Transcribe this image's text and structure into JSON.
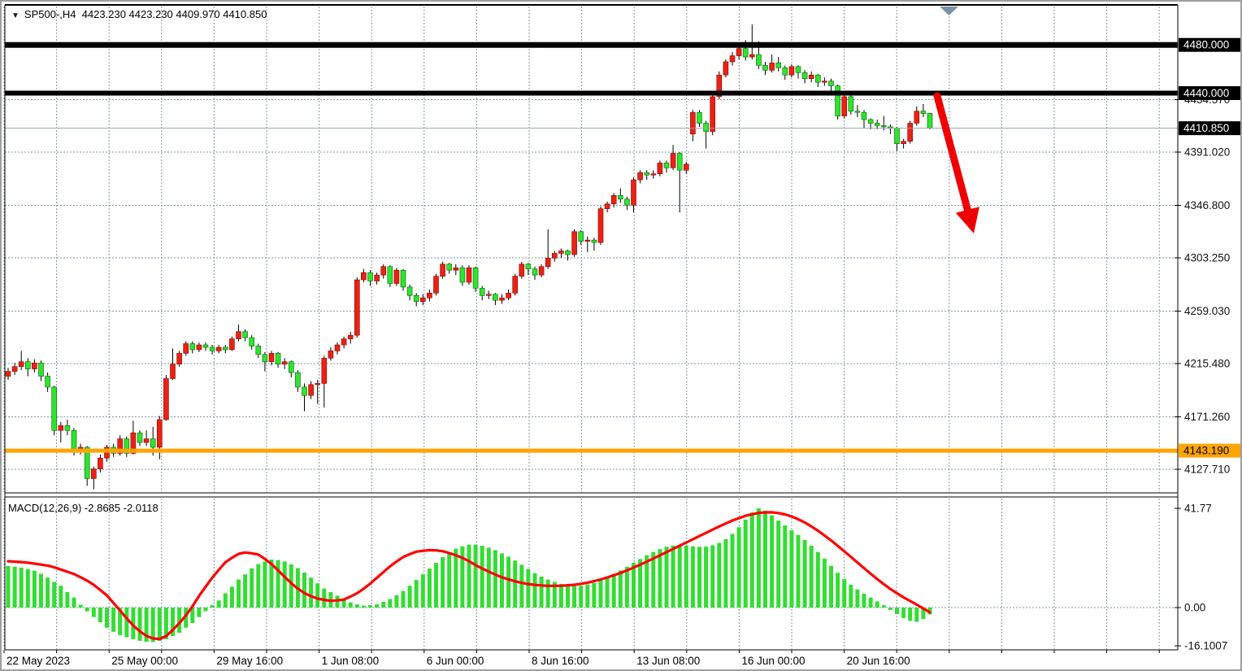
{
  "header": {
    "title": "SP500-,H4  4423.230 4423.230 4409.970 4410.850",
    "dropdown_marker": "▼"
  },
  "macd_panel": {
    "label": "MACD(12,26,9) -2.8685 -2.0118"
  },
  "price_axis": {
    "labels": [
      {
        "t": "4434.570",
        "p": 4434.57
      },
      {
        "t": "4391.020",
        "p": 4391.02
      },
      {
        "t": "4346.800",
        "p": 4346.8
      },
      {
        "t": "4303.250",
        "p": 4303.25
      },
      {
        "t": "4259.030",
        "p": 4259.03
      },
      {
        "t": "4215.480",
        "p": 4215.48
      },
      {
        "t": "4171.260",
        "p": 4171.26
      },
      {
        "t": "4127.710",
        "p": 4127.71
      }
    ],
    "badges": [
      {
        "t": "4480.000",
        "p": 4480.0,
        "bg": "#000000",
        "fg": "#ffffff",
        "line_w": 7,
        "line_color": "#000000",
        "name": "resistance-upper"
      },
      {
        "t": "4440.000",
        "p": 4440.0,
        "bg": "#000000",
        "fg": "#ffffff",
        "line_w": 6,
        "line_color": "#000000",
        "name": "resistance-lower"
      },
      {
        "t": "4410.850",
        "p": 4410.85,
        "bg": "#000000",
        "fg": "#ffffff",
        "line_w": 1,
        "line_color": "#90a4ae",
        "name": "current-price"
      },
      {
        "t": "4143.190",
        "p": 4143.19,
        "bg": "#ffa500",
        "fg": "#000000",
        "line_w": 5,
        "line_color": "#ffa500",
        "name": "support-orange"
      }
    ]
  },
  "macd_axis": [
    {
      "t": "41.77",
      "v": 41.77
    },
    {
      "t": "0.00",
      "v": 0.0
    },
    {
      "t": "-16.1007",
      "v": -16.1007
    }
  ],
  "time_axis": [
    {
      "t": "22 May 2023",
      "k": 0
    },
    {
      "t": "25 May 00:00",
      "k": 2
    },
    {
      "t": "29 May 16:00",
      "k": 4
    },
    {
      "t": "1 Jun 08:00",
      "k": 6
    },
    {
      "t": "6 Jun 00:00",
      "k": 8
    },
    {
      "t": "8 Jun 16:00",
      "k": 10
    },
    {
      "t": "13 Jun 08:00",
      "k": 12
    },
    {
      "t": "16 Jun 00:00",
      "k": 14
    },
    {
      "t": "20 Jun 16:00",
      "k": 16
    }
  ],
  "colors": {
    "bull_candle": "#ea2213",
    "bull_border": "#8b0000",
    "bear_candle": "#2fe42f",
    "bear_border": "#006400",
    "wick": "#000000",
    "grid": "#8296a8",
    "macd_hist": "#33dd33",
    "macd_signal": "#ff0000",
    "level_black": "#000000",
    "level_orange": "#ffa500",
    "current_line": "#90a4ae",
    "arrow": "#ee0000",
    "scroll_marker": "#7d93a3"
  },
  "chart_data": {
    "type": "candlestick+macd",
    "symbol": "SP500-",
    "timeframe": "H4",
    "ohlc_display": {
      "open": 4423.23,
      "high": 4423.23,
      "low": 4409.97,
      "close": 4410.85
    },
    "levels": {
      "resistance_upper": 4480.0,
      "resistance_lower": 4440.0,
      "support": 4143.19,
      "current": 4410.85
    },
    "macd_values": {
      "macd": -2.8685,
      "signal": -2.0118
    },
    "ylim_price": [
      4110,
      4500
    ],
    "ylim_macd": [
      -16.1007,
      41.77
    ],
    "candles": [
      [
        4205,
        4212,
        4202,
        4209
      ],
      [
        4209,
        4216,
        4206,
        4213
      ],
      [
        4213,
        4226,
        4210,
        4217
      ],
      [
        4217,
        4220,
        4205,
        4211
      ],
      [
        4211,
        4219,
        4208,
        4216
      ],
      [
        4216,
        4218,
        4201,
        4205
      ],
      [
        4205,
        4208,
        4192,
        4196
      ],
      [
        4196,
        4197,
        4156,
        4160
      ],
      [
        4160,
        4167,
        4150,
        4164
      ],
      [
        4164,
        4169,
        4156,
        4160
      ],
      [
        4160,
        4162,
        4139,
        4143
      ],
      [
        4143,
        4149,
        4140,
        4146
      ],
      [
        4146,
        4147,
        4114,
        4120
      ],
      [
        4120,
        4130,
        4111,
        4128
      ],
      [
        4128,
        4140,
        4125,
        4137
      ],
      [
        4137,
        4148,
        4134,
        4146
      ],
      [
        4146,
        4149,
        4138,
        4141
      ],
      [
        4141,
        4156,
        4139,
        4153
      ],
      [
        4153,
        4155,
        4138,
        4141
      ],
      [
        4141,
        4168,
        4140,
        4158
      ],
      [
        4158,
        4160,
        4147,
        4150
      ],
      [
        4150,
        4160,
        4147,
        4153
      ],
      [
        4153,
        4163,
        4139,
        4146
      ],
      [
        4146,
        4172,
        4136,
        4169
      ],
      [
        4169,
        4206,
        4168,
        4203
      ],
      [
        4203,
        4228,
        4202,
        4215
      ],
      [
        4215,
        4226,
        4213,
        4224
      ],
      [
        4224,
        4234,
        4222,
        4232
      ],
      [
        4232,
        4234,
        4224,
        4227
      ],
      [
        4227,
        4233,
        4225,
        4231
      ],
      [
        4231,
        4233,
        4226,
        4229
      ],
      [
        4229,
        4231,
        4223,
        4226
      ],
      [
        4226,
        4231,
        4224,
        4229
      ],
      [
        4229,
        4231,
        4224,
        4227
      ],
      [
        4227,
        4238,
        4226,
        4236
      ],
      [
        4236,
        4248,
        4234,
        4242
      ],
      [
        4242,
        4244,
        4234,
        4237
      ],
      [
        4237,
        4239,
        4227,
        4230
      ],
      [
        4230,
        4232,
        4220,
        4223
      ],
      [
        4223,
        4225,
        4209,
        4217
      ],
      [
        4217,
        4226,
        4214,
        4224
      ],
      [
        4224,
        4225,
        4212,
        4215
      ],
      [
        4215,
        4220,
        4211,
        4217
      ],
      [
        4217,
        4218,
        4204,
        4208
      ],
      [
        4208,
        4210,
        4192,
        4196
      ],
      [
        4196,
        4199,
        4176,
        4189
      ],
      [
        4189,
        4201,
        4186,
        4198
      ],
      [
        4198,
        4202,
        4182,
        4199
      ],
      [
        4199,
        4222,
        4179,
        4220
      ],
      [
        4220,
        4229,
        4218,
        4226
      ],
      [
        4226,
        4233,
        4223,
        4231
      ],
      [
        4231,
        4238,
        4228,
        4236
      ],
      [
        4236,
        4242,
        4232,
        4239
      ],
      [
        4239,
        4287,
        4237,
        4285
      ],
      [
        4285,
        4294,
        4283,
        4291
      ],
      [
        4291,
        4293,
        4280,
        4284
      ],
      [
        4284,
        4291,
        4281,
        4289
      ],
      [
        4289,
        4298,
        4286,
        4296
      ],
      [
        4296,
        4297,
        4279,
        4282
      ],
      [
        4282,
        4295,
        4280,
        4293
      ],
      [
        4293,
        4294,
        4276,
        4279
      ],
      [
        4279,
        4281,
        4268,
        4272
      ],
      [
        4272,
        4274,
        4263,
        4267
      ],
      [
        4267,
        4273,
        4264,
        4270
      ],
      [
        4270,
        4277,
        4267,
        4274
      ],
      [
        4274,
        4290,
        4272,
        4288
      ],
      [
        4288,
        4300,
        4286,
        4298
      ],
      [
        4298,
        4299,
        4290,
        4293
      ],
      [
        4293,
        4298,
        4289,
        4295
      ],
      [
        4295,
        4297,
        4280,
        4283
      ],
      [
        4283,
        4297,
        4281,
        4295
      ],
      [
        4295,
        4296,
        4275,
        4278
      ],
      [
        4278,
        4280,
        4268,
        4272
      ],
      [
        4272,
        4276,
        4269,
        4273
      ],
      [
        4273,
        4274,
        4264,
        4268
      ],
      [
        4268,
        4273,
        4265,
        4270
      ],
      [
        4270,
        4277,
        4268,
        4274
      ],
      [
        4274,
        4290,
        4272,
        4288
      ],
      [
        4288,
        4300,
        4286,
        4298
      ],
      [
        4298,
        4299,
        4289,
        4294
      ],
      [
        4294,
        4296,
        4285,
        4289
      ],
      [
        4289,
        4298,
        4287,
        4296
      ],
      [
        4296,
        4327,
        4294,
        4303
      ],
      [
        4303,
        4309,
        4300,
        4307
      ],
      [
        4307,
        4311,
        4303,
        4309
      ],
      [
        4309,
        4310,
        4301,
        4306
      ],
      [
        4306,
        4327,
        4304,
        4325
      ],
      [
        4325,
        4326,
        4314,
        4317
      ],
      [
        4317,
        4321,
        4308,
        4318
      ],
      [
        4318,
        4320,
        4309,
        4316
      ],
      [
        4316,
        4346,
        4314,
        4344
      ],
      [
        4344,
        4350,
        4341,
        4348
      ],
      [
        4348,
        4357,
        4345,
        4355
      ],
      [
        4355,
        4361,
        4349,
        4352
      ],
      [
        4352,
        4354,
        4343,
        4347
      ],
      [
        4347,
        4370,
        4341,
        4368
      ],
      [
        4368,
        4376,
        4365,
        4374
      ],
      [
        4374,
        4376,
        4368,
        4372
      ],
      [
        4372,
        4376,
        4369,
        4373
      ],
      [
        4373,
        4384,
        4371,
        4382
      ],
      [
        4382,
        4384,
        4374,
        4378
      ],
      [
        4378,
        4397,
        4376,
        4390
      ],
      [
        4390,
        4391,
        4341,
        4376
      ],
      [
        4376,
        4383,
        4373,
        4381
      ],
      [
        4406,
        4426,
        4400,
        4424
      ],
      [
        4424,
        4426,
        4412,
        4415
      ],
      [
        4415,
        4417,
        4394,
        4408
      ],
      [
        4408,
        4439,
        4405,
        4437
      ],
      [
        4437,
        4458,
        4435,
        4455
      ],
      [
        4455,
        4468,
        4453,
        4466
      ],
      [
        4466,
        4474,
        4463,
        4471
      ],
      [
        4471,
        4481,
        4468,
        4477
      ],
      [
        4477,
        4484,
        4467,
        4470
      ],
      [
        4470,
        4497,
        4468,
        4472
      ],
      [
        4472,
        4483,
        4460,
        4463
      ],
      [
        4463,
        4466,
        4455,
        4459
      ],
      [
        4459,
        4472,
        4457,
        4465
      ],
      [
        4465,
        4470,
        4458,
        4461
      ],
      [
        4461,
        4463,
        4451,
        4455
      ],
      [
        4455,
        4464,
        4453,
        4462
      ],
      [
        4462,
        4463,
        4452,
        4457
      ],
      [
        4457,
        4459,
        4448,
        4452
      ],
      [
        4452,
        4458,
        4449,
        4455
      ],
      [
        4455,
        4456,
        4445,
        4449
      ],
      [
        4449,
        4453,
        4446,
        4450
      ],
      [
        4450,
        4452,
        4442,
        4446
      ],
      [
        4446,
        4447,
        4418,
        4421
      ],
      [
        4421,
        4439,
        4419,
        4437
      ],
      [
        4437,
        4438,
        4422,
        4425
      ],
      [
        4425,
        4430,
        4420,
        4424
      ],
      [
        4424,
        4426,
        4411,
        4418
      ],
      [
        4418,
        4419,
        4410,
        4415
      ],
      [
        4415,
        4418,
        4410,
        4413
      ],
      [
        4413,
        4421,
        4409,
        4412
      ],
      [
        4412,
        4414,
        4406,
        4411
      ],
      [
        4411,
        4412,
        4392,
        4398
      ],
      [
        4398,
        4402,
        4394,
        4400
      ],
      [
        4400,
        4417,
        4398,
        4415
      ],
      [
        4415,
        4429,
        4413,
        4425
      ],
      [
        4425,
        4431,
        4420,
        4423
      ],
      [
        4423.23,
        4423.23,
        4409.97,
        4410.85
      ]
    ],
    "macd_histogram": [
      17.5,
      17.2,
      16.8,
      16.2,
      15.5,
      14.2,
      12.6,
      10.8,
      9.2,
      6.5,
      4.2,
      1.2,
      -1.6,
      -4,
      -6.2,
      -8.5,
      -10.2,
      -11.6,
      -12.5,
      -13.3,
      -14,
      -14.4,
      -14.5,
      -14,
      -13.3,
      -12,
      -10.6,
      -8.5,
      -6.5,
      -4,
      -1.5,
      1,
      3,
      6,
      8.8,
      11.8,
      14,
      16.5,
      18.3,
      19.4,
      20.2,
      20,
      19.4,
      18.2,
      16.6,
      14.7,
      12.6,
      10.2,
      8,
      6.5,
      5,
      3.5,
      2.2,
      1.4,
      0.8,
      1,
      1.4,
      2.4,
      3.6,
      5.2,
      7,
      9.2,
      11.6,
      14,
      16.4,
      18.8,
      21.2,
      23.2,
      24.8,
      25.8,
      26.5,
      26.5,
      26,
      25.2,
      24.2,
      22.8,
      21.4,
      19.8,
      18,
      16.2,
      14.5,
      13,
      11.8,
      10.8,
      10,
      9.4,
      9.1,
      9.2,
      9.7,
      10.4,
      11.6,
      12.8,
      14.2,
      15.6,
      17.2,
      18.8,
      20.4,
      22,
      23.4,
      24.6,
      25.6,
      26.1,
      26.3,
      26.1,
      25.8,
      25.6,
      25.7,
      26.2,
      27.2,
      28.8,
      31,
      33.8,
      37,
      40,
      41.77,
      40.8,
      38.8,
      36.6,
      34.6,
      32.6,
      30.6,
      28.4,
      26,
      23.4,
      20.6,
      17.6,
      14.6,
      12,
      9.6,
      7.6,
      5.8,
      4.2,
      2.6,
      1,
      -1,
      -2.8,
      -4.4,
      -5.6,
      -6,
      -4.8,
      -2.87
    ],
    "macd_signal_points": [
      [
        8,
        19.5
      ],
      [
        30,
        19
      ],
      [
        60,
        17.5
      ],
      [
        90,
        14
      ],
      [
        110,
        10.5
      ],
      [
        130,
        5
      ],
      [
        145,
        -1
      ],
      [
        160,
        -7
      ],
      [
        175,
        -11.5
      ],
      [
        190,
        -13.5
      ],
      [
        200,
        -12.8
      ],
      [
        215,
        -8
      ],
      [
        230,
        -2
      ],
      [
        245,
        6
      ],
      [
        260,
        13
      ],
      [
        275,
        19
      ],
      [
        290,
        22.5
      ],
      [
        300,
        23.2
      ],
      [
        315,
        22.5
      ],
      [
        330,
        19
      ],
      [
        345,
        14
      ],
      [
        360,
        9
      ],
      [
        375,
        5.5
      ],
      [
        390,
        3.6
      ],
      [
        405,
        2.8
      ],
      [
        420,
        3.2
      ],
      [
        435,
        5.5
      ],
      [
        450,
        9
      ],
      [
        465,
        13.5
      ],
      [
        480,
        18
      ],
      [
        495,
        21.5
      ],
      [
        510,
        23.5
      ],
      [
        525,
        24.2
      ],
      [
        540,
        24
      ],
      [
        555,
        22.5
      ],
      [
        570,
        20.5
      ],
      [
        585,
        17.5
      ],
      [
        600,
        15
      ],
      [
        615,
        12.8
      ],
      [
        630,
        11.2
      ],
      [
        645,
        10
      ],
      [
        660,
        9.4
      ],
      [
        675,
        9.1
      ],
      [
        690,
        9.2
      ],
      [
        705,
        9.6
      ],
      [
        720,
        10.4
      ],
      [
        735,
        11.6
      ],
      [
        750,
        13.2
      ],
      [
        765,
        15
      ],
      [
        780,
        17.2
      ],
      [
        795,
        19.5
      ],
      [
        810,
        22
      ],
      [
        825,
        24.5
      ],
      [
        840,
        27
      ],
      [
        855,
        29.5
      ],
      [
        870,
        32
      ],
      [
        885,
        34.5
      ],
      [
        900,
        36.8
      ],
      [
        915,
        38.6
      ],
      [
        930,
        39.8
      ],
      [
        945,
        40.2
      ],
      [
        960,
        39.6
      ],
      [
        975,
        38
      ],
      [
        990,
        35.5
      ],
      [
        1005,
        32.2
      ],
      [
        1020,
        28.4
      ],
      [
        1035,
        24.2
      ],
      [
        1050,
        19.8
      ],
      [
        1065,
        15.4
      ],
      [
        1080,
        11.2
      ],
      [
        1095,
        7.4
      ],
      [
        1110,
        4.2
      ],
      [
        1125,
        1.4
      ],
      [
        1142,
        -2.01
      ]
    ]
  }
}
